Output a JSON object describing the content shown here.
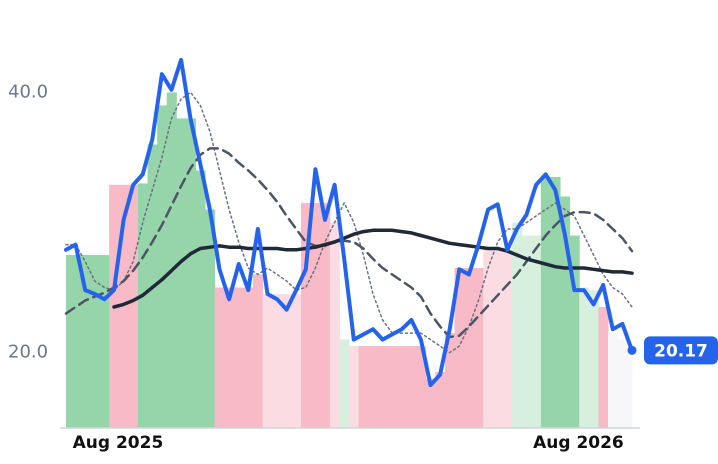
{
  "chart_data": {
    "type": "line",
    "categories": [
      null,
      null,
      null,
      null,
      null,
      "Aug 2025",
      null,
      null,
      null,
      null,
      null,
      null,
      null,
      null,
      null,
      null,
      null,
      null,
      null,
      null,
      null,
      null,
      null,
      null,
      null,
      null,
      null,
      null,
      null,
      null,
      null,
      null,
      null,
      null,
      null,
      null,
      null,
      null,
      null,
      null,
      null,
      null,
      null,
      null,
      null,
      null,
      null,
      null,
      null,
      null,
      null,
      null,
      null,
      "Aug 2026",
      null,
      null,
      null,
      null,
      null,
      null
    ],
    "series": [
      {
        "color": "#2563eb",
        "style": "solid",
        "width": 4,
        "values": [
          27.9,
          28.3,
          24.8,
          24.5,
          24.1,
          24.8,
          30.2,
          32.9,
          33.7,
          36.4,
          41.4,
          40.2,
          42.5,
          37.9,
          34.5,
          31.0,
          26.4,
          24.1,
          26.8,
          24.8,
          29.5,
          24.5,
          24.1,
          23.3,
          24.8,
          26.4,
          34.1,
          30.2,
          32.9,
          27.2,
          21.0,
          21.4,
          21.8,
          21.0,
          21.4,
          21.8,
          22.5,
          21.0,
          17.5,
          18.3,
          21.8,
          26.4,
          26.0,
          28.3,
          31.0,
          31.4,
          27.9,
          29.5,
          30.6,
          32.9,
          33.7,
          32.5,
          29.1,
          24.8,
          24.8,
          23.7,
          25.2,
          21.8,
          22.2,
          20.17
        ]
      },
      {
        "color": "#6b7280",
        "style": "dotted",
        "width": 1.5,
        "values": [
          28.3,
          28.3,
          27,
          25.5,
          25,
          24.8,
          25.5,
          27,
          30,
          32.5,
          35,
          38,
          39.5,
          40,
          39,
          37,
          34,
          31,
          28.5,
          26.5,
          26,
          26.5,
          26,
          25.5,
          24.8,
          25,
          26.5,
          28.5,
          30,
          31.5,
          30,
          27.5,
          24.5,
          22.5,
          21.5,
          21.5,
          21.5,
          21.5,
          21,
          20.5,
          20,
          20.5,
          22,
          24,
          26.5,
          28.5,
          29.5,
          29.5,
          30,
          30.5,
          31,
          31.5,
          31,
          30.5,
          29,
          27.5,
          26,
          25,
          24.5,
          23.5
        ]
      },
      {
        "color": "#4b5563",
        "style": "dashed",
        "width": 2.5,
        "values": [
          23,
          23.5,
          24,
          24.3,
          24.6,
          25,
          25.5,
          26.3,
          27.3,
          28.5,
          29.8,
          31.3,
          32.8,
          34.2,
          35.2,
          35.7,
          35.7,
          35.3,
          34.6,
          34.0,
          33.3,
          32.5,
          31.6,
          30.5,
          29.5,
          28.5,
          28.2,
          28.2,
          28.5,
          28.6,
          28.5,
          28,
          27.2,
          26.5,
          26,
          25.5,
          25,
          24.3,
          23,
          22,
          21.2,
          21.3,
          22,
          22.8,
          23.6,
          24.4,
          25.2,
          26,
          27,
          28,
          29,
          29.8,
          30.5,
          30.8,
          30.8,
          30.7,
          30.2,
          29.5,
          28.8,
          27.8
        ]
      },
      {
        "color": "#1f2937",
        "style": "solid",
        "width": 3.5,
        "values": [
          null,
          null,
          null,
          null,
          null,
          23.5,
          23.7,
          24,
          24.4,
          25,
          25.6,
          26.3,
          27,
          27.6,
          28,
          28.1,
          28.2,
          28.1,
          28.1,
          28,
          28,
          28,
          28,
          27.9,
          27.9,
          28,
          28.1,
          28.3,
          28.5,
          28.8,
          29.1,
          29.3,
          29.4,
          29.4,
          29.4,
          29.3,
          29.2,
          29,
          28.8,
          28.6,
          28.4,
          28.3,
          28.2,
          28.1,
          28,
          28,
          27.8,
          27.5,
          27.2,
          27,
          26.8,
          26.6,
          26.5,
          26.5,
          26.5,
          26.4,
          26.3,
          26.2,
          26.2,
          26.1
        ]
      }
    ],
    "bands": {
      "values": [
        27.5,
        27.5,
        27.5,
        27.5,
        27.5,
        32.9,
        32.9,
        32.9,
        33,
        36,
        39,
        40,
        38,
        38,
        34,
        31,
        25,
        25,
        25,
        25,
        26,
        24.5,
        24.5,
        24.5,
        24.5,
        31.5,
        31.5,
        31.5,
        30,
        21,
        20.5,
        20.5,
        20.5,
        20.5,
        20.5,
        20.5,
        20.5,
        20.5,
        18,
        18.5,
        21.5,
        26.5,
        26.5,
        26.5,
        28,
        28,
        28,
        30,
        29,
        29,
        33.5,
        33.5,
        32,
        29,
        25,
        24.8,
        23.5,
        21.5,
        21,
        20
      ],
      "colors": [
        "#96d4aa",
        "#96d4aa",
        "#96d4aa",
        "#96d4aa",
        "#96d4aa",
        "#f7bac6",
        "#f7bac6",
        "#f7bac6",
        "#96d4aa",
        "#96d4aa",
        "#96d4aa",
        "#96d4aa",
        "#96d4aa",
        "#96d4aa",
        "#96d4aa",
        "#96d4aa",
        "#f7bac6",
        "#f7bac6",
        "#f7bac6",
        "#f7bac6",
        "#f7bac6",
        "#fbdce3",
        "#fbdce3",
        "#fbdce3",
        "#fbdce3",
        "#f7bac6",
        "#f7bac6",
        "#f7bac6",
        "#fbdce3",
        "#d7f0de",
        "#fbdce3",
        "#f7bac6",
        "#f7bac6",
        "#f7bac6",
        "#f7bac6",
        "#f7bac6",
        "#f7bac6",
        "#f7bac6",
        "#f7bac6",
        "#f7bac6",
        "#f7bac6",
        "#f7bac6",
        "#f7bac6",
        "#f7bac6",
        "#fbdce3",
        "#fbdce3",
        "#fbdce3",
        "#d7f0de",
        "#d7f0de",
        "#d7f0de",
        "#96d4aa",
        "#96d4aa",
        "#96d4aa",
        "#96d4aa",
        "#d7f0de",
        "#d7f0de",
        "#f7bac6",
        "#f7f7f9",
        "#f7f7f9",
        "#f7f7f9"
      ]
    },
    "ylim": [
      14.2,
      44.8
    ],
    "yticks": [
      {
        "value": 20,
        "label": "20.0"
      },
      {
        "value": 40,
        "label": "40.0"
      }
    ],
    "last_value_color": "#2563eb"
  }
}
